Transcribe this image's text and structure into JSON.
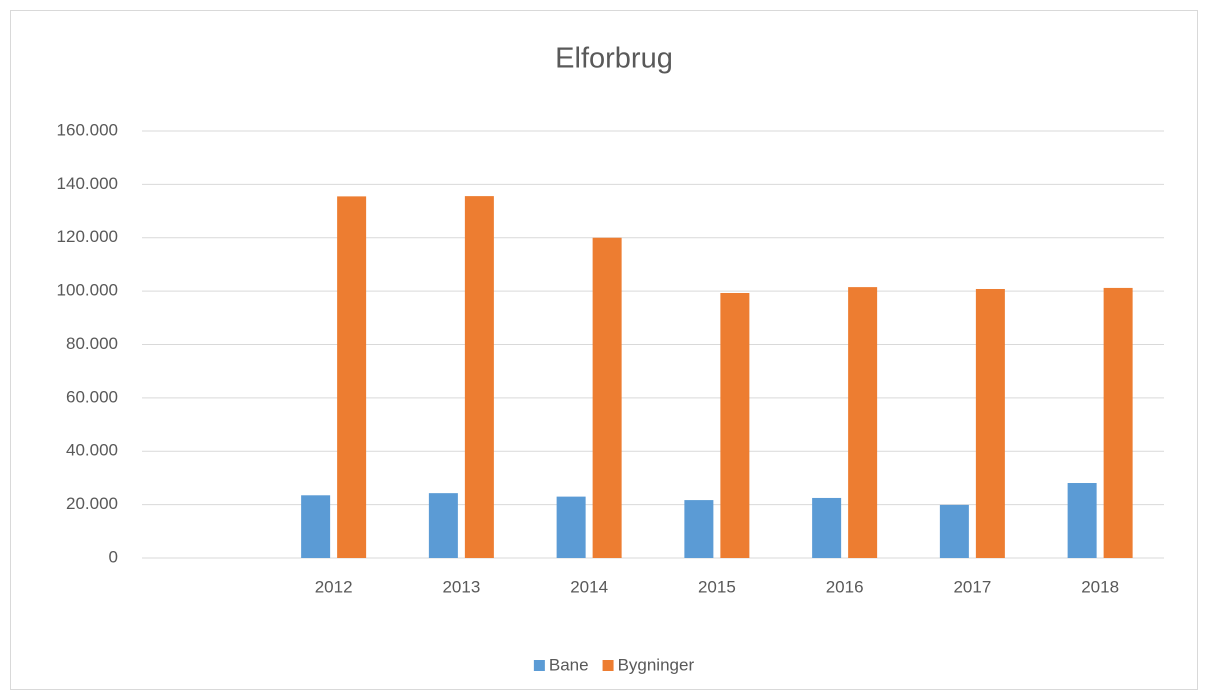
{
  "chart_data": {
    "type": "bar",
    "title": "Elforbrug",
    "categories": [
      null,
      "2012",
      "2013",
      "2014",
      "2015",
      "2016",
      "2017",
      "2018"
    ],
    "series": [
      {
        "name": "Bane",
        "color": "#5b9bd5",
        "values": [
          null,
          23500,
          24300,
          23000,
          21700,
          22500,
          19900,
          28100
        ]
      },
      {
        "name": "Bygninger",
        "color": "#ed7d31",
        "values": [
          null,
          135500,
          135600,
          120000,
          99300,
          101500,
          100800,
          101200
        ]
      }
    ],
    "ylim": [
      0,
      160000
    ],
    "yticks": [
      0,
      {
        "value": 20000,
        "label": "20.000"
      },
      {
        "value": 40000,
        "label": "40.000"
      },
      {
        "value": 60000,
        "label": "60.000"
      },
      {
        "value": 80000,
        "label": "80.000"
      },
      {
        "value": 100000,
        "label": "100.000"
      },
      {
        "value": 120000,
        "label": "120.000"
      },
      {
        "value": 140000,
        "label": "140.000"
      },
      {
        "value": 160000,
        "label": "160.000"
      }
    ],
    "grid": true,
    "legend": "bottom"
  }
}
